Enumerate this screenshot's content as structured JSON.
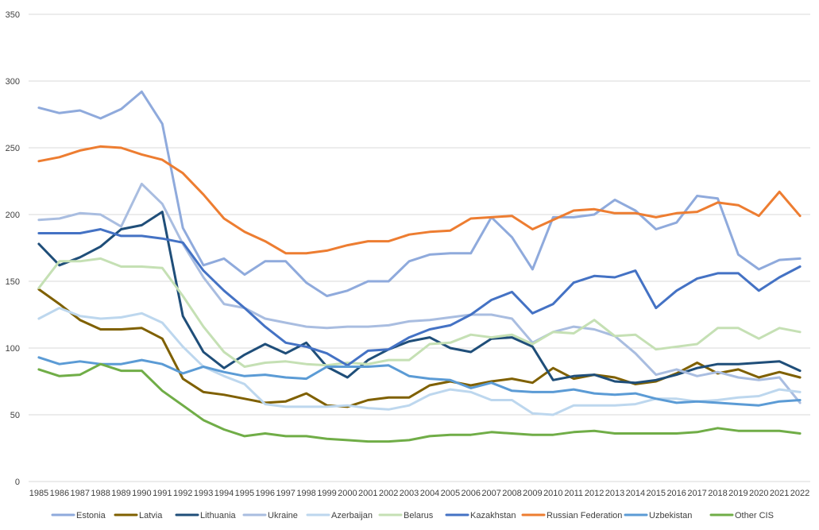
{
  "chart_data": {
    "type": "line",
    "title": "",
    "xlabel": "",
    "ylabel": "",
    "ylim": [
      0,
      350
    ],
    "yticks": [
      0,
      50,
      100,
      150,
      200,
      250,
      300,
      350
    ],
    "grid": true,
    "legend_position": "bottom",
    "x": [
      "1985",
      "1986",
      "1987",
      "1988",
      "1989",
      "1990",
      "1991",
      "1992",
      "1993",
      "1994",
      "1995",
      "1996",
      "1997",
      "1998",
      "1999",
      "2000",
      "2001",
      "2002",
      "2003",
      "2004",
      "2005",
      "2006",
      "2007",
      "2008",
      "2009",
      "2010",
      "2011",
      "2012",
      "2013",
      "2014",
      "2015",
      "2016",
      "2017",
      "2018",
      "2019",
      "2020",
      "2021",
      "2022"
    ],
    "series": [
      {
        "name": "Estonia",
        "color": "#8faadc",
        "values": [
          280,
          276,
          278,
          272,
          279,
          292,
          268,
          190,
          162,
          167,
          155,
          165,
          165,
          149,
          139,
          143,
          150,
          150,
          165,
          170,
          171,
          171,
          198,
          183,
          159,
          198,
          198,
          200,
          211,
          203,
          189,
          194,
          214,
          212,
          170,
          159,
          166,
          167
        ]
      },
      {
        "name": "Latvia",
        "color": "#7f6000",
        "values": [
          144,
          133,
          121,
          114,
          114,
          115,
          107,
          77,
          67,
          65,
          62,
          59,
          60,
          66,
          57,
          56,
          61,
          63,
          63,
          72,
          75,
          72,
          75,
          77,
          74,
          85,
          77,
          80,
          78,
          73,
          75,
          81,
          89,
          81,
          84,
          78,
          82,
          78
        ]
      },
      {
        "name": "Lithuania",
        "color": "#1f4e79",
        "values": [
          178,
          162,
          168,
          176,
          189,
          192,
          202,
          124,
          97,
          85,
          95,
          103,
          96,
          104,
          86,
          78,
          91,
          99,
          105,
          108,
          100,
          97,
          107,
          108,
          101,
          76,
          79,
          80,
          75,
          74,
          76,
          80,
          85,
          88,
          88,
          89,
          90,
          83
        ]
      },
      {
        "name": "Ukraine",
        "color": "#a9bde0",
        "values": [
          196,
          197,
          201,
          200,
          191,
          223,
          208,
          178,
          153,
          133,
          130,
          122,
          119,
          116,
          115,
          116,
          116,
          117,
          120,
          121,
          123,
          125,
          125,
          122,
          104,
          112,
          116,
          114,
          109,
          96,
          80,
          84,
          79,
          82,
          78,
          76,
          78,
          59
        ]
      },
      {
        "name": "Azerbaijan",
        "color": "#bdd7ee",
        "values": [
          122,
          130,
          124,
          122,
          123,
          126,
          119,
          101,
          86,
          79,
          73,
          58,
          56,
          56,
          56,
          57,
          55,
          54,
          57,
          65,
          69,
          67,
          61,
          61,
          51,
          50,
          57,
          57,
          57,
          58,
          62,
          62,
          60,
          61,
          63,
          64,
          69,
          67
        ]
      },
      {
        "name": "Belarus",
        "color": "#c5e0b4",
        "values": [
          145,
          165,
          165,
          167,
          161,
          161,
          160,
          139,
          116,
          97,
          86,
          89,
          90,
          88,
          87,
          89,
          88,
          91,
          91,
          103,
          104,
          110,
          108,
          110,
          103,
          112,
          111,
          121,
          109,
          110,
          99,
          101,
          103,
          115,
          115,
          107,
          115,
          112
        ]
      },
      {
        "name": "Kazakhstan",
        "color": "#4472c4",
        "values": [
          186,
          186,
          186,
          189,
          184,
          184,
          182,
          179,
          158,
          143,
          130,
          116,
          104,
          101,
          96,
          87,
          98,
          99,
          108,
          114,
          117,
          125,
          136,
          142,
          126,
          133,
          149,
          154,
          153,
          158,
          130,
          143,
          152,
          156,
          156,
          143,
          153,
          161
        ]
      },
      {
        "name": "Russian Federation",
        "color": "#ed7d31",
        "values": [
          240,
          243,
          248,
          251,
          250,
          245,
          241,
          231,
          215,
          197,
          187,
          180,
          171,
          171,
          173,
          177,
          180,
          180,
          185,
          187,
          188,
          197,
          198,
          199,
          189,
          196,
          203,
          204,
          201,
          201,
          198,
          201,
          202,
          209,
          207,
          199,
          217,
          199
        ]
      },
      {
        "name": "Uzbekistan",
        "color": "#5b9bd5",
        "values": [
          93,
          88,
          90,
          88,
          88,
          91,
          88,
          81,
          86,
          82,
          79,
          80,
          78,
          77,
          86,
          86,
          86,
          87,
          79,
          77,
          76,
          70,
          74,
          68,
          67,
          67,
          69,
          66,
          65,
          66,
          62,
          59,
          60,
          59,
          58,
          57,
          60,
          61
        ]
      },
      {
        "name": "Other CIS",
        "color": "#70ad47",
        "values": [
          84,
          79,
          80,
          88,
          83,
          83,
          68,
          57,
          46,
          39,
          34,
          36,
          34,
          34,
          32,
          31,
          30,
          30,
          31,
          34,
          35,
          35,
          37,
          36,
          35,
          35,
          37,
          38,
          36,
          36,
          36,
          36,
          37,
          40,
          38,
          38,
          38,
          36
        ]
      }
    ]
  }
}
